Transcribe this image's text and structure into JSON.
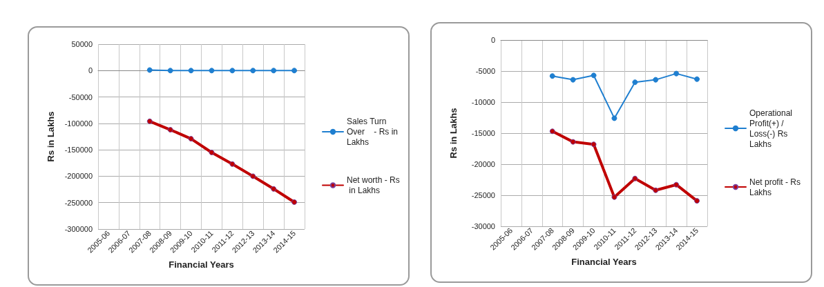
{
  "chart_data": [
    {
      "type": "line",
      "xlabel": "Financial Years",
      "ylabel": "Rs in Lakhs",
      "categories": [
        "2005-06",
        "2006-07",
        "2007-08",
        "2008-09",
        "2009-10",
        "2010-11",
        "2011-12",
        "2012-13",
        "2013-14",
        "2014-15"
      ],
      "series": [
        {
          "name": "Sales Turn Over    - Rs in Lakhs",
          "color": "#1f7fd0",
          "values": [
            null,
            null,
            1000,
            0,
            0,
            0,
            0,
            0,
            0,
            0
          ]
        },
        {
          "name": "Net worth - Rs in Lakhs",
          "color": "#c00000",
          "values": [
            null,
            null,
            -96000,
            -112000,
            -129000,
            -155000,
            -177000,
            -200000,
            -224000,
            -249000
          ]
        }
      ],
      "ylim": [
        -300000,
        50000
      ],
      "yticks": [
        -300000,
        -250000,
        -200000,
        -150000,
        -100000,
        -50000,
        0,
        50000
      ],
      "grid": true,
      "legend": "right",
      "marker": "circle"
    },
    {
      "type": "line",
      "xlabel": "Financial Years",
      "ylabel": "Rs in Lakhs",
      "categories": [
        "2005-06",
        "2006-07",
        "2007-08",
        "2008-09",
        "2009-10",
        "2010-11",
        "2011-12",
        "2012-13",
        "2013-14",
        "2014-15"
      ],
      "series": [
        {
          "name": "Operational Profit(+) /Loss(-) Rs Lakhs",
          "color": "#1f7fd0",
          "values": [
            null,
            null,
            -5800,
            -6400,
            -5700,
            -12600,
            -6800,
            -6400,
            -5400,
            -6300
          ]
        },
        {
          "name": "Net profit - Rs Lakhs",
          "color": "#c00000",
          "values": [
            null,
            null,
            -14700,
            -16400,
            -16800,
            -25300,
            -22300,
            -24200,
            -23300,
            -25900
          ]
        }
      ],
      "ylim": [
        -30000,
        0
      ],
      "yticks": [
        -30000,
        -25000,
        -20000,
        -15000,
        -10000,
        -5000,
        0
      ],
      "grid": true,
      "legend": "right",
      "marker": "circle"
    }
  ]
}
